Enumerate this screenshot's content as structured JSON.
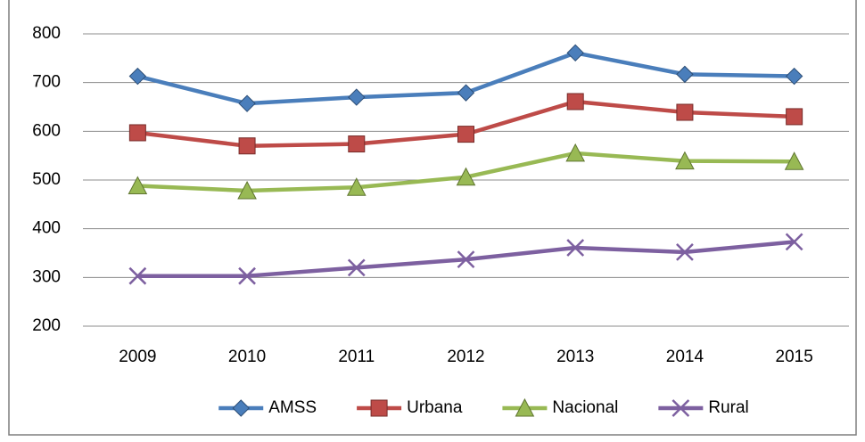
{
  "chart_data": {
    "type": "line",
    "categories": [
      "2009",
      "2010",
      "2011",
      "2012",
      "2013",
      "2014",
      "2015"
    ],
    "series": [
      {
        "name": "AMSS",
        "color": "#4a7ebb",
        "marker": "diamond",
        "values": [
          713,
          657,
          670,
          679,
          761,
          717,
          713
        ]
      },
      {
        "name": "Urbana",
        "color": "#be4b48",
        "marker": "square",
        "values": [
          597,
          570,
          574,
          594,
          661,
          639,
          630
        ]
      },
      {
        "name": "Nacional",
        "color": "#98b954",
        "marker": "triangle",
        "values": [
          488,
          478,
          485,
          506,
          555,
          539,
          538
        ]
      },
      {
        "name": "Rural",
        "color": "#7d60a0",
        "marker": "x",
        "values": [
          303,
          303,
          320,
          337,
          361,
          352,
          373
        ]
      }
    ],
    "ylim": [
      200,
      800
    ],
    "yticks": [
      200,
      300,
      400,
      500,
      600,
      700,
      800
    ],
    "grid": true,
    "legend": "bottom"
  }
}
